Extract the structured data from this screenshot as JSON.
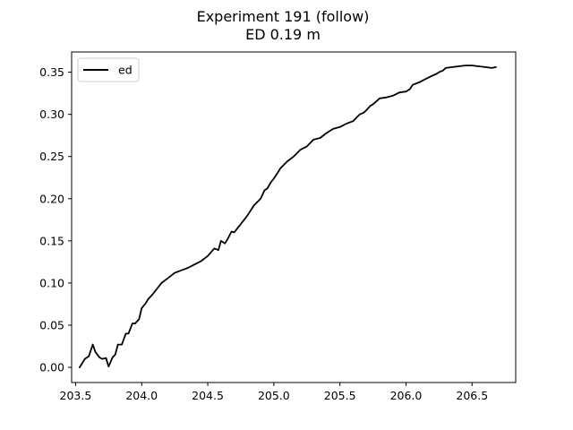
{
  "chart_data": {
    "type": "line",
    "title": "Experiment 191 (follow)",
    "subtitle": "ED 0.19 m",
    "xlabel": "",
    "ylabel": "",
    "xlim": [
      203.47,
      206.83
    ],
    "ylim": [
      -0.018,
      0.374
    ],
    "x_ticks": [
      203.5,
      204.0,
      204.5,
      205.0,
      205.5,
      206.0,
      206.5
    ],
    "x_tick_labels": [
      "203.5",
      "204.0",
      "204.5",
      "205.0",
      "205.5",
      "206.0",
      "206.5"
    ],
    "y_ticks": [
      0.0,
      0.05,
      0.1,
      0.15,
      0.2,
      0.25,
      0.3,
      0.35
    ],
    "y_tick_labels": [
      "0.00",
      "0.05",
      "0.10",
      "0.15",
      "0.20",
      "0.25",
      "0.30",
      "0.35"
    ],
    "grid": false,
    "legend_position": "top-left",
    "series": [
      {
        "name": "ed",
        "color": "#000000",
        "x": [
          203.53,
          203.57,
          203.6,
          203.63,
          203.65,
          203.68,
          203.7,
          203.73,
          203.75,
          203.78,
          203.8,
          203.82,
          203.85,
          203.88,
          203.9,
          203.93,
          203.95,
          203.98,
          204.0,
          204.03,
          204.05,
          204.08,
          204.1,
          204.15,
          204.2,
          204.25,
          204.3,
          204.35,
          204.4,
          204.45,
          204.5,
          204.55,
          204.58,
          204.6,
          204.63,
          204.65,
          204.68,
          204.7,
          204.73,
          204.75,
          204.78,
          204.8,
          204.85,
          204.9,
          204.93,
          204.95,
          204.98,
          205.0,
          205.03,
          205.05,
          205.1,
          205.15,
          205.2,
          205.25,
          205.3,
          205.35,
          205.4,
          205.45,
          205.5,
          205.55,
          205.6,
          205.63,
          205.65,
          205.68,
          205.7,
          205.73,
          205.75,
          205.78,
          205.8,
          205.85,
          205.9,
          205.95,
          206.0,
          206.03,
          206.05,
          206.1,
          206.15,
          206.2,
          206.23,
          206.25,
          206.28,
          206.3,
          206.35,
          206.4,
          206.45,
          206.5,
          206.55,
          206.6,
          206.65,
          206.68
        ],
        "y": [
          0.0,
          0.01,
          0.013,
          0.027,
          0.018,
          0.012,
          0.01,
          0.011,
          0.001,
          0.012,
          0.015,
          0.027,
          0.027,
          0.04,
          0.04,
          0.052,
          0.052,
          0.057,
          0.07,
          0.076,
          0.081,
          0.086,
          0.09,
          0.1,
          0.106,
          0.112,
          0.115,
          0.118,
          0.122,
          0.126,
          0.132,
          0.141,
          0.139,
          0.15,
          0.147,
          0.152,
          0.161,
          0.16,
          0.166,
          0.17,
          0.176,
          0.18,
          0.192,
          0.2,
          0.21,
          0.212,
          0.22,
          0.224,
          0.231,
          0.236,
          0.244,
          0.25,
          0.258,
          0.262,
          0.27,
          0.272,
          0.278,
          0.283,
          0.285,
          0.289,
          0.292,
          0.297,
          0.3,
          0.302,
          0.305,
          0.31,
          0.312,
          0.316,
          0.319,
          0.32,
          0.322,
          0.326,
          0.327,
          0.33,
          0.335,
          0.338,
          0.342,
          0.346,
          0.348,
          0.35,
          0.352,
          0.355,
          0.356,
          0.357,
          0.358,
          0.358,
          0.357,
          0.356,
          0.355,
          0.356
        ]
      }
    ]
  }
}
